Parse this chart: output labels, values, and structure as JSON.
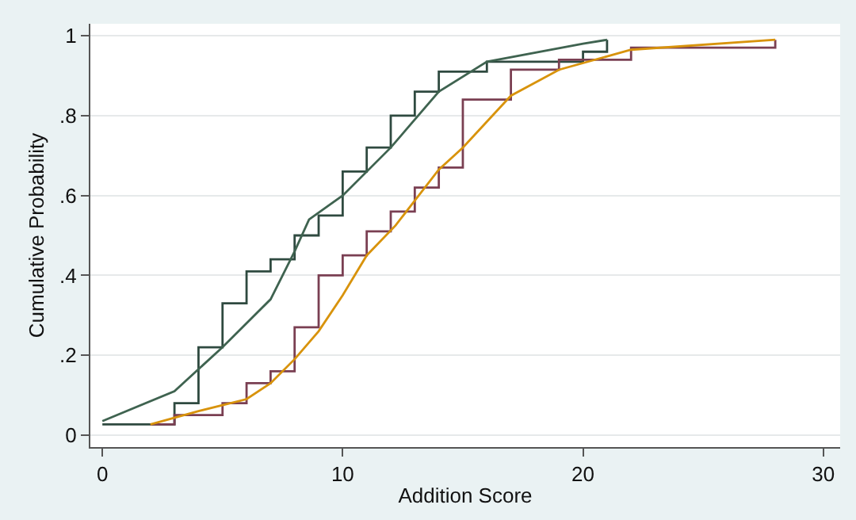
{
  "chart_data": {
    "type": "step",
    "xlabel": "Addition Score",
    "ylabel": "Cumulative Probability",
    "xlim": [
      -0.5,
      30.7
    ],
    "xticks": [
      0,
      10,
      20,
      30
    ],
    "ylim": [
      -0.03,
      1.03
    ],
    "yticks": [
      {
        "value": 0,
        "label": "0"
      },
      {
        "value": 0.2,
        "label": ".2"
      },
      {
        "value": 0.4,
        "label": ".4"
      },
      {
        "value": 0.6,
        "label": ".6"
      },
      {
        "value": 0.8,
        "label": ".8"
      },
      {
        "value": 1,
        "label": "1"
      }
    ],
    "grid": "y",
    "marker": "none",
    "line_style": "solid",
    "series": [
      {
        "color": "#2f4a40",
        "x": [
          0,
          3,
          4,
          5,
          6,
          7,
          8,
          9,
          10,
          11,
          12,
          13,
          14,
          16,
          20,
          21
        ],
        "values": [
          0.027,
          0.08,
          0.22,
          0.33,
          0.41,
          0.44,
          0.5,
          0.55,
          0.66,
          0.72,
          0.8,
          0.86,
          0.91,
          0.935,
          0.96,
          0.99
        ]
      },
      {
        "type": "line",
        "color": "#3f6350",
        "x": [
          0,
          3,
          5,
          7,
          8,
          8.6,
          10,
          12,
          14,
          16,
          20,
          21
        ],
        "values": [
          0.035,
          0.11,
          0.22,
          0.34,
          0.46,
          0.54,
          0.6,
          0.72,
          0.86,
          0.935,
          0.98,
          0.99
        ]
      },
      {
        "color": "#7a3f52",
        "x": [
          2,
          3,
          5,
          6,
          7,
          8,
          9,
          10,
          11,
          12,
          13,
          14,
          15,
          17,
          19,
          22,
          28
        ],
        "values": [
          0.027,
          0.05,
          0.08,
          0.13,
          0.16,
          0.27,
          0.4,
          0.45,
          0.51,
          0.56,
          0.62,
          0.67,
          0.84,
          0.915,
          0.94,
          0.97,
          0.99
        ]
      },
      {
        "type": "line",
        "color": "#d8930c",
        "x": [
          2,
          4,
          6,
          7,
          8,
          9,
          10,
          11,
          12.2,
          14,
          15,
          17,
          19,
          22,
          28
        ],
        "values": [
          0.027,
          0.06,
          0.09,
          0.13,
          0.19,
          0.26,
          0.35,
          0.45,
          0.525,
          0.665,
          0.72,
          0.85,
          0.915,
          0.965,
          0.99
        ]
      }
    ]
  }
}
